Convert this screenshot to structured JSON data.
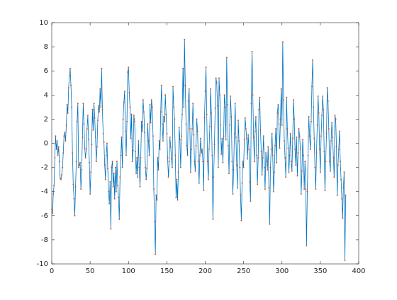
{
  "chart_data": {
    "type": "line",
    "color": "#0072bd",
    "marker_color": "#d95319",
    "xlim": [
      0,
      400
    ],
    "xticks": [
      0,
      50,
      100,
      150,
      200,
      250,
      300,
      350,
      400
    ],
    "ylim": [
      -10,
      10
    ],
    "yticks": [
      -10,
      -8,
      -6,
      -4,
      -2,
      0,
      2,
      4,
      6,
      8,
      10
    ],
    "grid": false,
    "values": [
      -5.5,
      -5.8,
      -4.2,
      -3.5,
      -1.2,
      0.6,
      -0.5,
      0.2,
      -1.0,
      -0.3,
      -1.5,
      -2.9,
      -3.0,
      -2.6,
      -2.0,
      -0.8,
      0.6,
      0.9,
      0.2,
      1.5,
      3.2,
      2.5,
      4.6,
      5.6,
      6.2,
      4.8,
      3.0,
      -0.8,
      -3.4,
      -4.6,
      -6.0,
      -3.6,
      -1.5,
      1.8,
      3.3,
      -2.0,
      -1.8,
      -1.6,
      -3.8,
      -2.2,
      0.5,
      3.3,
      1.6,
      -0.4,
      -1.2,
      -0.5,
      1.2,
      2.3,
      0.3,
      -1.6,
      -4.2,
      -2.4,
      -0.1,
      2.8,
      1.1,
      3.3,
      2.1,
      0.5,
      -1.5,
      -0.3,
      1.9,
      3.1,
      2.6,
      4.5,
      3.0,
      6.2,
      2.8,
      0.8,
      0.1,
      -1.8,
      -3.0,
      -1.0,
      0.0,
      -2.1,
      -4.0,
      -5.0,
      -3.2,
      -7.1,
      -2.0,
      -1.5,
      -3.6,
      -2.5,
      -4.6,
      -2.0,
      -4.0,
      -1.5,
      -3.5,
      -4.5,
      -6.3,
      -2.8,
      -1.0,
      0.5,
      -2.0,
      2.0,
      3.4,
      4.3,
      1.0,
      -1.0,
      1.8,
      5.9,
      6.3,
      4.2,
      3.0,
      0.4,
      2.4,
      -1.5,
      -0.6,
      2.3,
      1.8,
      -0.7,
      -2.5,
      -1.2,
      -2.8,
      0.2,
      -2.0,
      -3.6,
      -1.2,
      1.8,
      1.0,
      3.6,
      2.6,
      0.9,
      -2.0,
      -3.0,
      -2.1,
      1.6,
      0.2,
      -1.0,
      3.2,
      1.7,
      3.6,
      3.0,
      0.6,
      -3.8,
      -6.5,
      -9.2,
      -4.3,
      -4.7,
      -1.2,
      -2.2,
      0.2,
      -0.5,
      2.6,
      4.8,
      1.6,
      0.2,
      2.2,
      1.8,
      4.0,
      2.4,
      0.8,
      -1.2,
      -2.8,
      -1.5,
      0.5,
      -0.3,
      -1.3,
      -2.0,
      4.7,
      3.0,
      2.0,
      -1.0,
      -4.5,
      -3.0,
      -4.7,
      -2.4,
      1.3,
      0.3,
      -2.0,
      0.6,
      2.4,
      6.2,
      3.0,
      8.6,
      4.8,
      1.6,
      -0.2,
      -1.0,
      3.5,
      4.5,
      1.2,
      -2.4,
      -0.5,
      1.2,
      3.3,
      0.7,
      -1.5,
      -2.3,
      -0.2,
      2.0,
      1.0,
      -1.5,
      -3.3,
      -1.0,
      0.4,
      -0.8,
      -0.5,
      -1.5,
      -3.9,
      2.1,
      4.3,
      6.3,
      2.4,
      -1.5,
      -3.0,
      -0.5,
      1.4,
      4.5,
      2.5,
      -1.0,
      -6.3,
      -2.8,
      -0.1,
      2.9,
      5.4,
      5.0,
      3.1,
      -2.0,
      5.4,
      4.0,
      1.5,
      -0.9,
      0.4,
      -1.6,
      0.6,
      4.0,
      3.0,
      0.3,
      7.1,
      3.2,
      -0.2,
      -2.5,
      1.5,
      3.9,
      2.2,
      -1.5,
      -4.2,
      -2.2,
      0.8,
      3.3,
      0.5,
      -1.8,
      -3.7,
      1.9,
      0.2,
      -2.0,
      -4.3,
      -6.4,
      -3.3,
      -1.5,
      -2.0,
      0.3,
      2.1,
      1.2,
      0.4,
      -1.3,
      0.7,
      -0.5,
      -3.2,
      -4.8,
      3.3,
      7.6,
      4.0,
      0.5,
      -1.5,
      1.0,
      2.2,
      -1.0,
      -3.4,
      -1.2,
      2.8,
      3.8,
      1.1,
      -0.7,
      -2.6,
      -1.2,
      0.6,
      -2.0,
      -3.8,
      -0.8,
      -1.5,
      -2.2,
      -0.3,
      -3.7,
      -6.7,
      -2.0,
      -0.5,
      0.8,
      -1.0,
      -4.0,
      -2.4,
      -0.2,
      1.2,
      -1.6,
      2.5,
      3.2,
      1.6,
      -0.4,
      2.0,
      4.5,
      1.5,
      8.4,
      3.6,
      0.2,
      -1.2,
      -2.8,
      3.8,
      1.2,
      -0.4,
      -2.4,
      -1.0,
      0.8,
      -1.5,
      -2.3,
      0.4,
      3.6,
      2.0,
      -0.5,
      -1.8,
      0.5,
      -2.7,
      -0.8,
      1.2,
      0.6,
      -0.5,
      -4.2,
      -2.3,
      0.3,
      -1.0,
      -3.8,
      -1.5,
      -3.8,
      -8.5,
      -4.0,
      -1.0,
      2.2,
      0.6,
      -0.5,
      1.8,
      4.7,
      6.9,
      3.0,
      0.4,
      -2.0,
      -3.8,
      -0.8,
      1.5,
      3.9,
      2.5,
      -0.5,
      -2.4,
      0.6,
      2.3,
      3.9,
      2.8,
      -0.7,
      -3.9,
      -1.5,
      0.8,
      4.6,
      3.5,
      1.2,
      -1.5,
      -2.3,
      0.2,
      1.7,
      0.5,
      -1.2,
      -2.8,
      2.3,
      2.0,
      -0.3,
      -4.3,
      -1.8,
      -0.5,
      1.0,
      -1.5,
      -3.0,
      -4.6,
      -6.2,
      -3.7,
      -2.4,
      -9.7,
      -4.3
    ]
  }
}
